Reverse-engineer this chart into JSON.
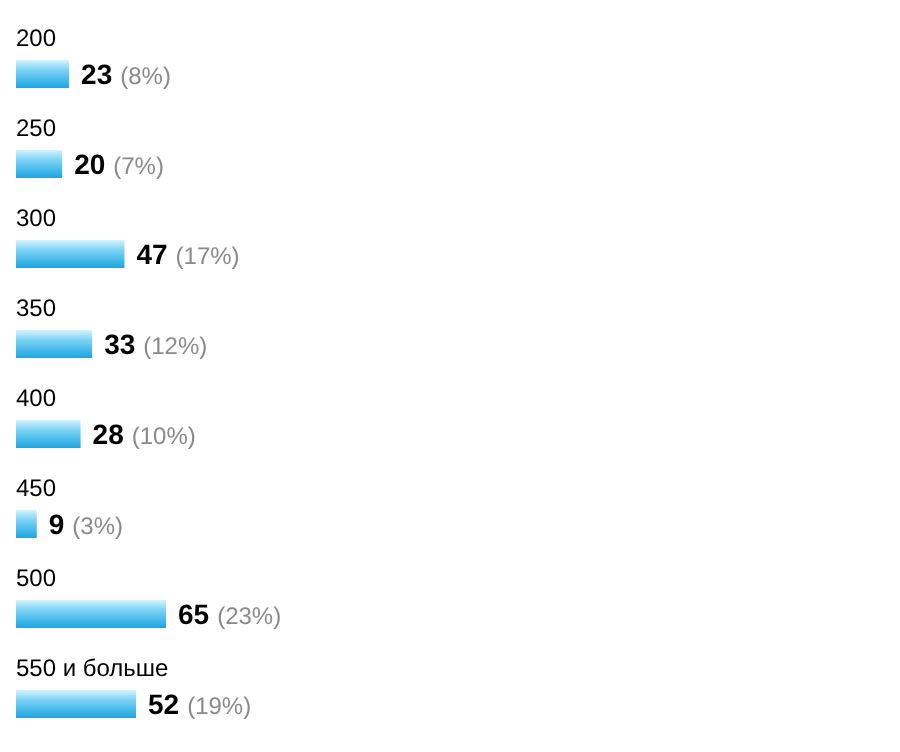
{
  "chart_data": {
    "type": "bar",
    "orientation": "horizontal",
    "categories": [
      "200",
      "250",
      "300",
      "350",
      "400",
      "450",
      "500",
      "550 и больше"
    ],
    "values": [
      23,
      20,
      47,
      33,
      28,
      9,
      65,
      52
    ],
    "value_labels": [
      "23 (8%)",
      "20 (7%)",
      "47 (17%)",
      "33 (12%)",
      "28 (10%)",
      "9 (3%)",
      "65 (23%)",
      "52 (19%)"
    ],
    "color": "#1ca6e2"
  }
}
